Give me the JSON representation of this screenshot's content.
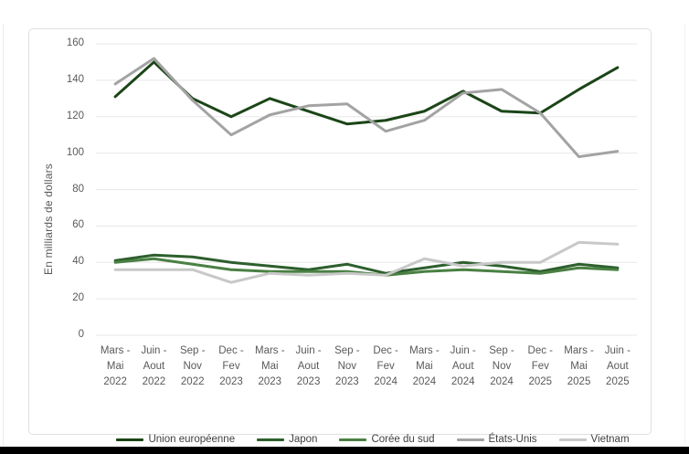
{
  "page": {
    "bottom_bar_color": "#000000",
    "frame_border_color": "#e0e0e0"
  },
  "axis": {
    "text_color": "#595959",
    "grid_color": "#e7e7e7"
  },
  "chart_data": {
    "type": "line",
    "title": "",
    "xlabel": "",
    "ylabel": "En milliards de dollars",
    "ylim": [
      0,
      160
    ],
    "yticks": [
      0,
      20,
      40,
      60,
      80,
      100,
      120,
      140,
      160
    ],
    "grid": "horizontal",
    "legend_position": "bottom",
    "categories": [
      "Mars -\nMai\n2022",
      "Juin -\nAout\n2022",
      "Sep -\nNov\n2022",
      "Dec -\nFev\n2023",
      "Mars -\nMai\n2023",
      "Juin -\nAout\n2023",
      "Sep -\nNov\n2023",
      "Dec -\nFev\n2024",
      "Mars -\nMai\n2024",
      "Juin -\nAout\n2024",
      "Sep -\nNov\n2024",
      "Dec -\nFev\n2025",
      "Mars -\nMai\n2025",
      "Juin -\nAout\n2025"
    ],
    "series": [
      {
        "name": "Union européenne",
        "color": "#1b4517",
        "values": [
          131,
          150,
          130,
          120,
          130,
          123,
          116,
          118,
          123,
          134,
          123,
          122,
          135,
          147
        ]
      },
      {
        "name": "Japon",
        "color": "#2d5f2d",
        "values": [
          41,
          44,
          43,
          40,
          38,
          36,
          39,
          34,
          37,
          40,
          38,
          35,
          39,
          37
        ]
      },
      {
        "name": "Corée du sud",
        "color": "#4a8043",
        "values": [
          40,
          42,
          39,
          36,
          35,
          35,
          35,
          33,
          35,
          36,
          35,
          34,
          37,
          36
        ]
      },
      {
        "name": "États-Unis",
        "color": "#a3a3a3",
        "values": [
          138,
          152,
          129,
          110,
          121,
          126,
          127,
          112,
          118,
          133,
          135,
          122,
          98,
          101
        ]
      },
      {
        "name": "Vietnam",
        "color": "#c8c8c8",
        "values": [
          36,
          36,
          36,
          29,
          34,
          33,
          34,
          33,
          42,
          38,
          40,
          40,
          51,
          50
        ]
      }
    ]
  }
}
